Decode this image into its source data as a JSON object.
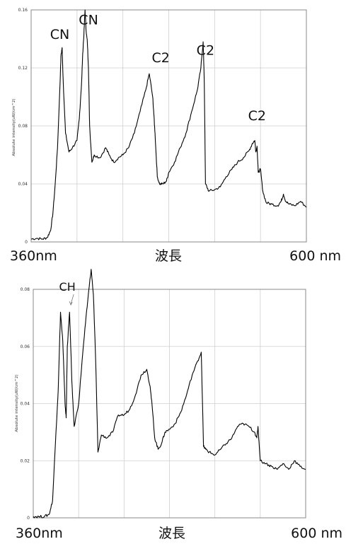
{
  "chart_data": [
    {
      "type": "line",
      "ylabel": "Absolute intensity(uW/cm^2)",
      "ylim": [
        0,
        0.16
      ],
      "y_ticks": [
        "0",
        "0.04",
        "0.08",
        "0.12",
        "0.16"
      ],
      "xlim": [
        360,
        600
      ],
      "x_left_label": "360nm",
      "x_center_label": "波長",
      "x_right_label": "600 nm",
      "grid": true,
      "annotations": [
        {
          "text": "CN",
          "x": 385.0,
          "y": 0.14
        },
        {
          "text": "CN",
          "x": 410.0,
          "y": 0.15
        },
        {
          "text": "C2",
          "x": 473.0,
          "y": 0.124
        },
        {
          "text": "C2",
          "x": 512.0,
          "y": 0.129
        },
        {
          "text": "C2",
          "x": 557.0,
          "y": 0.084
        }
      ],
      "x": [
        360,
        365,
        370,
        374,
        377,
        379,
        381,
        383,
        385,
        386,
        387,
        388,
        390,
        393,
        396,
        400,
        402,
        404,
        405,
        406,
        407,
        408,
        409,
        410,
        411,
        413,
        415,
        420,
        425,
        428,
        432,
        436,
        440,
        445,
        450,
        455,
        460,
        463,
        466,
        467,
        468,
        470,
        472,
        475,
        478,
        480,
        485,
        490,
        495,
        500,
        505,
        508,
        510,
        511,
        512,
        515,
        520,
        525,
        530,
        535,
        540,
        545,
        550,
        553,
        555,
        556,
        557,
        558,
        560,
        562,
        565,
        570,
        575,
        578,
        580,
        582,
        585,
        590,
        595,
        600
      ],
      "values": [
        0.002,
        0.0025,
        0.002,
        0.003,
        0.008,
        0.02,
        0.04,
        0.065,
        0.105,
        0.128,
        0.134,
        0.11,
        0.075,
        0.062,
        0.065,
        0.07,
        0.085,
        0.11,
        0.13,
        0.143,
        0.16,
        0.145,
        0.138,
        0.12,
        0.08,
        0.055,
        0.06,
        0.058,
        0.065,
        0.06,
        0.055,
        0.058,
        0.06,
        0.065,
        0.075,
        0.09,
        0.105,
        0.116,
        0.1,
        0.088,
        0.075,
        0.045,
        0.04,
        0.04,
        0.042,
        0.048,
        0.055,
        0.065,
        0.075,
        0.09,
        0.105,
        0.12,
        0.138,
        0.11,
        0.04,
        0.035,
        0.036,
        0.038,
        0.045,
        0.05,
        0.055,
        0.058,
        0.063,
        0.068,
        0.07,
        0.062,
        0.066,
        0.048,
        0.05,
        0.035,
        0.027,
        0.026,
        0.025,
        0.028,
        0.033,
        0.028,
        0.026,
        0.025,
        0.028,
        0.024
      ]
    },
    {
      "type": "line",
      "ylabel": "Absolute intensity(uW/cm^2)",
      "ylim": [
        0,
        0.08
      ],
      "y_ticks": [
        "0",
        "0.02",
        "0.04",
        "0.06",
        "0.08"
      ],
      "xlim": [
        360,
        600
      ],
      "x_left_label": "360nm",
      "x_center_label": "波長",
      "x_right_label": "600 nm",
      "grid": true,
      "annotations": [
        {
          "text": "CH",
          "x": 390.0,
          "y": 0.0795
        }
      ],
      "x": [
        360,
        365,
        370,
        374,
        377,
        380,
        382,
        384,
        386,
        388,
        389,
        390,
        392,
        394,
        396,
        400,
        403,
        406,
        409,
        411,
        413,
        415,
        417,
        420,
        425,
        430,
        435,
        440,
        445,
        450,
        455,
        460,
        463,
        465,
        467,
        470,
        473,
        476,
        480,
        485,
        490,
        495,
        500,
        505,
        508,
        510,
        512,
        515,
        520,
        525,
        530,
        535,
        540,
        545,
        550,
        555,
        557,
        558,
        560,
        565,
        570,
        575,
        580,
        585,
        590,
        595,
        600
      ],
      "values": [
        0.0005,
        0.0004,
        0.0005,
        0.0012,
        0.006,
        0.03,
        0.045,
        0.072,
        0.062,
        0.04,
        0.035,
        0.06,
        0.072,
        0.048,
        0.032,
        0.04,
        0.055,
        0.068,
        0.08,
        0.087,
        0.078,
        0.055,
        0.023,
        0.029,
        0.028,
        0.03,
        0.036,
        0.036,
        0.038,
        0.043,
        0.05,
        0.052,
        0.046,
        0.038,
        0.028,
        0.024,
        0.026,
        0.03,
        0.031,
        0.033,
        0.037,
        0.043,
        0.05,
        0.055,
        0.058,
        0.025,
        0.024,
        0.023,
        0.022,
        0.024,
        0.026,
        0.028,
        0.032,
        0.033,
        0.032,
        0.03,
        0.028,
        0.032,
        0.02,
        0.019,
        0.018,
        0.017,
        0.019,
        0.017,
        0.02,
        0.018,
        0.017
      ]
    }
  ]
}
